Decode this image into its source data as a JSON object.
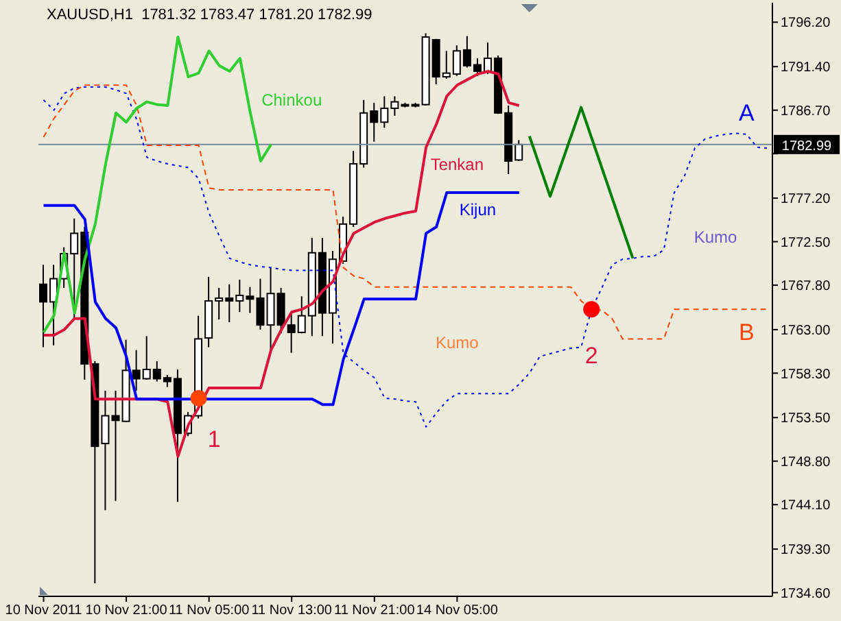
{
  "chart_data": {
    "type": "candlestick",
    "title": "XAUUSD,H1  1781.32 1783.47 1781.20 1782.99",
    "categories": [
      "10 Nov 2011",
      null,
      null,
      null,
      null,
      null,
      null,
      null,
      "10 Nov 21:00",
      null,
      null,
      null,
      null,
      null,
      null,
      null,
      "11 Nov 05:00",
      null,
      null,
      null,
      null,
      null,
      null,
      null,
      "11 Nov 13:00",
      null,
      null,
      null,
      null,
      null,
      null,
      null,
      "11 Nov 21:00",
      null,
      null,
      null,
      null,
      null,
      null,
      null,
      "14 Nov 05:00",
      null,
      null,
      null,
      null,
      null,
      null,
      null,
      null,
      null,
      null,
      null,
      null,
      null,
      null,
      null,
      null,
      null,
      null,
      null,
      null,
      null,
      null,
      null,
      null,
      null,
      null,
      null,
      null,
      null,
      null
    ],
    "ohlc": [
      [
        1767.9,
        1770.0,
        1761.1,
        1766.0
      ],
      [
        1766.0,
        1770.0,
        1761.3,
        1768.5
      ],
      [
        1768.5,
        1771.9,
        1767.5,
        1771.2
      ],
      [
        1771.2,
        1775.0,
        1764.2,
        1773.4
      ],
      [
        1773.5,
        1774.1,
        1757.6,
        1759.3
      ],
      [
        1759.3,
        1759.6,
        1735.6,
        1750.4
      ],
      [
        1750.7,
        1756.4,
        1743.5,
        1753.7
      ],
      [
        1753.7,
        1756.4,
        1744.5,
        1753.2
      ],
      [
        1753.1,
        1761.9,
        1753.0,
        1758.6
      ],
      [
        1758.6,
        1760.8,
        1756.4,
        1757.7
      ],
      [
        1757.7,
        1762.3,
        1757.6,
        1758.7
      ],
      [
        1758.7,
        1759.6,
        1757.4,
        1757.7
      ],
      [
        1757.8,
        1758.1,
        1756.8,
        1757.4
      ],
      [
        1757.7,
        1758.7,
        1744.4,
        1751.8
      ],
      [
        1751.8,
        1754.1,
        1751.5,
        1753.7
      ],
      [
        1753.7,
        1764.5,
        1753.4,
        1762.0
      ],
      [
        1762.1,
        1768.7,
        1761.1,
        1766.1
      ],
      [
        1766.1,
        1767.5,
        1764.1,
        1766.4
      ],
      [
        1766.4,
        1767.9,
        1763.8,
        1766.1
      ],
      [
        1766.1,
        1768.4,
        1764.9,
        1766.7
      ],
      [
        1766.6,
        1767.6,
        1764.8,
        1766.3
      ],
      [
        1766.4,
        1768.5,
        1763.0,
        1763.5
      ],
      [
        1763.5,
        1769.7,
        1760.8,
        1766.9
      ],
      [
        1766.9,
        1767.5,
        1762.6,
        1763.5
      ],
      [
        1763.5,
        1764.9,
        1760.5,
        1762.7
      ],
      [
        1762.7,
        1766.6,
        1762.6,
        1764.5
      ],
      [
        1764.5,
        1772.9,
        1762.3,
        1771.3
      ],
      [
        1771.3,
        1772.9,
        1762.3,
        1764.8
      ],
      [
        1764.8,
        1771.5,
        1761.5,
        1770.6
      ],
      [
        1770.4,
        1775.2,
        1770.1,
        1774.4
      ],
      [
        1774.4,
        1782.3,
        1774.1,
        1780.9
      ],
      [
        1780.9,
        1787.8,
        1780.5,
        1786.4
      ],
      [
        1786.6,
        1787.5,
        1783.3,
        1785.4
      ],
      [
        1785.4,
        1788.2,
        1784.8,
        1786.9
      ],
      [
        1786.9,
        1788.2,
        1786.1,
        1787.6
      ],
      [
        1787.2,
        1787.5,
        1787.0,
        1787.3
      ],
      [
        1787.3,
        1787.5,
        1787.0,
        1787.2
      ],
      [
        1787.3,
        1795.0,
        1787.2,
        1794.6
      ],
      [
        1794.3,
        1794.4,
        1789.5,
        1790.3
      ],
      [
        1790.3,
        1793.1,
        1790.1,
        1790.7
      ],
      [
        1790.6,
        1793.7,
        1790.4,
        1793.1
      ],
      [
        1793.2,
        1794.7,
        1791.3,
        1791.5
      ],
      [
        1791.6,
        1792.3,
        1790.4,
        1790.9
      ],
      [
        1790.9,
        1794.0,
        1790.6,
        1792.3
      ],
      [
        1792.3,
        1792.6,
        1786.3,
        1786.4
      ],
      [
        1786.4,
        1787.2,
        1779.8,
        1781.2
      ],
      [
        1781.32,
        1783.47,
        1781.2,
        1782.99
      ],
      null,
      null,
      null,
      null,
      null,
      null,
      null,
      null,
      null,
      null,
      null,
      null,
      null,
      null,
      null,
      null,
      null,
      null,
      null,
      null,
      null,
      null,
      null,
      null
    ],
    "series": [
      {
        "name": "Chinkou",
        "type": "line",
        "color": "#32cd32",
        "values": [
          1762.7,
          1764.5,
          1771.3,
          1764.8,
          1770.6,
          1774.4,
          1780.9,
          1786.4,
          1785.4,
          1786.9,
          1787.6,
          1787.3,
          1787.2,
          1794.6,
          1790.3,
          1790.7,
          1793.1,
          1791.5,
          1790.9,
          1792.3,
          1786.4,
          1781.2,
          1783.0,
          null,
          null,
          null,
          null,
          null,
          null,
          null,
          null,
          null,
          null,
          null,
          null,
          null,
          null,
          null,
          null,
          null,
          null,
          null,
          null,
          null,
          null,
          null,
          null,
          null,
          null,
          null,
          null,
          null,
          null,
          null,
          null,
          null,
          null,
          null,
          null,
          null,
          null,
          null,
          null,
          null,
          null,
          null,
          null,
          null,
          null,
          null,
          null
        ]
      },
      {
        "name": "Tenkan",
        "type": "line",
        "color": "#dc143c",
        "values": [
          1762.4,
          1762.4,
          1763.0,
          1764.2,
          1764.2,
          1755.5,
          1755.5,
          1755.5,
          1755.5,
          1755.5,
          1755.5,
          1755.5,
          1755.2,
          1749.3,
          1752.7,
          1754.6,
          1756.7,
          1756.7,
          1756.7,
          1756.7,
          1756.7,
          1756.7,
          1760.8,
          1763.0,
          1764.9,
          1765.2,
          1765.8,
          1767.2,
          1768.2,
          1771.2,
          1773.4,
          1774.0,
          1774.6,
          1775.0,
          1775.3,
          1775.6,
          1775.8,
          1782.7,
          1785.2,
          1788.2,
          1789.4,
          1790.0,
          1790.6,
          1790.9,
          1790.6,
          1787.5,
          1787.2,
          null,
          null,
          null,
          null,
          null,
          null,
          null,
          null,
          null,
          null,
          null,
          null,
          null,
          null,
          null,
          null,
          null,
          null,
          null,
          null,
          null,
          null,
          null,
          null
        ]
      },
      {
        "name": "Kijun",
        "type": "line",
        "color": "#0000ff",
        "values": [
          1776.4,
          1776.4,
          1776.4,
          1776.4,
          1774.9,
          1766.0,
          1764.2,
          1763.2,
          1760.1,
          1755.5,
          1755.5,
          1755.5,
          1755.5,
          1755.5,
          1755.5,
          1755.5,
          1755.5,
          1755.5,
          1755.5,
          1755.5,
          1755.5,
          1755.5,
          1755.5,
          1755.5,
          1755.5,
          1755.5,
          1755.5,
          1754.9,
          1754.9,
          1759.8,
          1763.0,
          1766.3,
          1766.3,
          1766.3,
          1766.3,
          1766.3,
          1766.3,
          1773.4,
          1774.1,
          1777.8,
          1777.8,
          1777.8,
          1777.8,
          1777.8,
          1777.8,
          1777.8,
          1777.8,
          null,
          null,
          null,
          null,
          null,
          null,
          null,
          null,
          null,
          null,
          null,
          null,
          null,
          null,
          null,
          null,
          null,
          null,
          null,
          null,
          null,
          null,
          null,
          null
        ]
      },
      {
        "name": "A",
        "type": "line",
        "color": "#0000ff",
        "line_style": "dotted",
        "values": [
          1787.8,
          1786.7,
          1788.5,
          1789.1,
          1789.2,
          1789.2,
          1789.2,
          1788.9,
          1788.5,
          1785.7,
          1781.6,
          1781.2,
          1780.9,
          1780.7,
          1780.5,
          1779.3,
          1775.6,
          1773.1,
          1770.7,
          1770.3,
          1770.0,
          1769.8,
          1769.7,
          1769.5,
          1769.4,
          1769.4,
          1769.4,
          1769.4,
          1769.4,
          1760.4,
          1759.5,
          1758.6,
          1757.8,
          1755.6,
          1755.5,
          1755.3,
          1755.2,
          1752.5,
          1754.0,
          1755.3,
          1756.1,
          1756.1,
          1756.1,
          1756.1,
          1756.1,
          1756.1,
          1757.1,
          1758.3,
          1760.1,
          1760.4,
          1760.7,
          1761.0,
          1761.1,
          1765.2,
          1767.5,
          1770.0,
          1770.6,
          1770.7,
          1770.9,
          1770.9,
          1771.6,
          1777.8,
          1779.6,
          1782.6,
          1783.6,
          1783.9,
          1784.1,
          1784.2,
          1784.1,
          1782.7,
          1782.6
        ]
      },
      {
        "name": "B",
        "type": "line",
        "color": "#ff4500",
        "line_style": "dashed",
        "values": [
          1783.8,
          1785.8,
          1787.3,
          1788.8,
          1789.4,
          1789.4,
          1789.4,
          1789.4,
          1789.4,
          1787.2,
          1782.9,
          1782.9,
          1782.9,
          1782.9,
          1782.9,
          1782.9,
          1778.3,
          1778.1,
          1778.1,
          1778.1,
          1778.1,
          1778.1,
          1778.1,
          1778.1,
          1778.1,
          1778.1,
          1778.1,
          1778.1,
          1778.1,
          1769.7,
          1768.8,
          1768.5,
          1767.6,
          1767.6,
          1767.6,
          1767.6,
          1767.6,
          1767.6,
          1767.6,
          1767.6,
          1767.6,
          1767.6,
          1767.6,
          1767.6,
          1767.6,
          1767.6,
          1767.6,
          1767.6,
          1767.6,
          1767.6,
          1767.6,
          1767.6,
          1766.1,
          1765.2,
          1765.1,
          1764.2,
          1762.0,
          1762.0,
          1762.0,
          1762.0,
          1762.0,
          1765.2,
          1765.2,
          1765.2,
          1765.2,
          1765.2,
          1765.2,
          1765.2,
          1765.2,
          1765.2,
          1765.2
        ]
      },
      {
        "type": "line",
        "color": "#008000",
        "values": [
          null,
          null,
          null,
          null,
          null,
          null,
          null,
          null,
          null,
          null,
          null,
          null,
          null,
          null,
          null,
          null,
          null,
          null,
          null,
          null,
          null,
          null,
          null,
          null,
          null,
          null,
          null,
          null,
          null,
          null,
          null,
          null,
          null,
          null,
          null,
          null,
          null,
          null,
          null,
          null,
          null,
          null,
          null,
          null,
          null,
          null,
          null,
          1783.9,
          null,
          1777.4,
          null,
          null,
          1787.0,
          null,
          null,
          null,
          null,
          1770.7,
          null,
          null,
          null,
          null,
          null,
          null,
          null,
          null,
          null,
          null,
          null,
          null,
          null
        ]
      },
      {
        "type": "scatter",
        "marker": "circle",
        "colors": [
          null,
          null,
          null,
          null,
          null,
          null,
          null,
          null,
          null,
          null,
          null,
          null,
          null,
          null,
          null,
          "#ff4500",
          null,
          null,
          null,
          null,
          null,
          null,
          null,
          null,
          null,
          null,
          null,
          null,
          null,
          null,
          null,
          null,
          null,
          null,
          null,
          null,
          null,
          null,
          null,
          null,
          null,
          null,
          null,
          null,
          null,
          null,
          null,
          null,
          null,
          null,
          null,
          null,
          null,
          "#ff0000",
          null,
          null,
          null,
          null,
          null,
          null,
          null,
          null,
          null,
          null,
          null,
          null,
          null,
          null,
          null,
          null,
          null
        ],
        "values": [
          null,
          null,
          null,
          null,
          null,
          null,
          null,
          null,
          null,
          null,
          null,
          null,
          null,
          null,
          null,
          1755.6,
          null,
          null,
          null,
          null,
          null,
          null,
          null,
          null,
          null,
          null,
          null,
          null,
          null,
          null,
          null,
          null,
          null,
          null,
          null,
          null,
          null,
          null,
          null,
          null,
          null,
          null,
          null,
          null,
          null,
          null,
          null,
          null,
          null,
          null,
          null,
          null,
          null,
          1765.2,
          null,
          null,
          null,
          null,
          null,
          null,
          null,
          null,
          null,
          null,
          null,
          null,
          null,
          null,
          null,
          null,
          null
        ]
      }
    ],
    "ylim": [
      1734.2,
      1798.3
    ],
    "yticks": [
      {
        "value": 1734.6,
        "label": "1734.60"
      },
      {
        "value": 1739.3,
        "label": "1739.30"
      },
      {
        "value": 1744.1,
        "label": "1744.10"
      },
      {
        "value": 1748.8,
        "label": "1748.80"
      },
      {
        "value": 1753.5,
        "label": "1753.50"
      },
      {
        "value": 1758.3,
        "label": "1758.30"
      },
      {
        "value": 1763.0,
        "label": "1763.00"
      },
      {
        "value": 1767.8,
        "label": "1767.80"
      },
      {
        "value": 1772.5,
        "label": "1772.50"
      },
      {
        "value": 1777.2,
        "label": "1777.20"
      },
      {
        "value": 1782.0,
        "label": null
      },
      {
        "value": 1786.7,
        "label": "1786.70"
      },
      {
        "value": 1791.4,
        "label": "1791.40"
      },
      {
        "value": 1796.2,
        "label": "1796.20"
      }
    ],
    "ref_lines": [
      {
        "axis": "y",
        "value": 1782.99,
        "label": "1782.99",
        "color": "#778899"
      }
    ],
    "annotations": [
      "Kumo",
      "Kumo",
      "1",
      "2"
    ]
  }
}
